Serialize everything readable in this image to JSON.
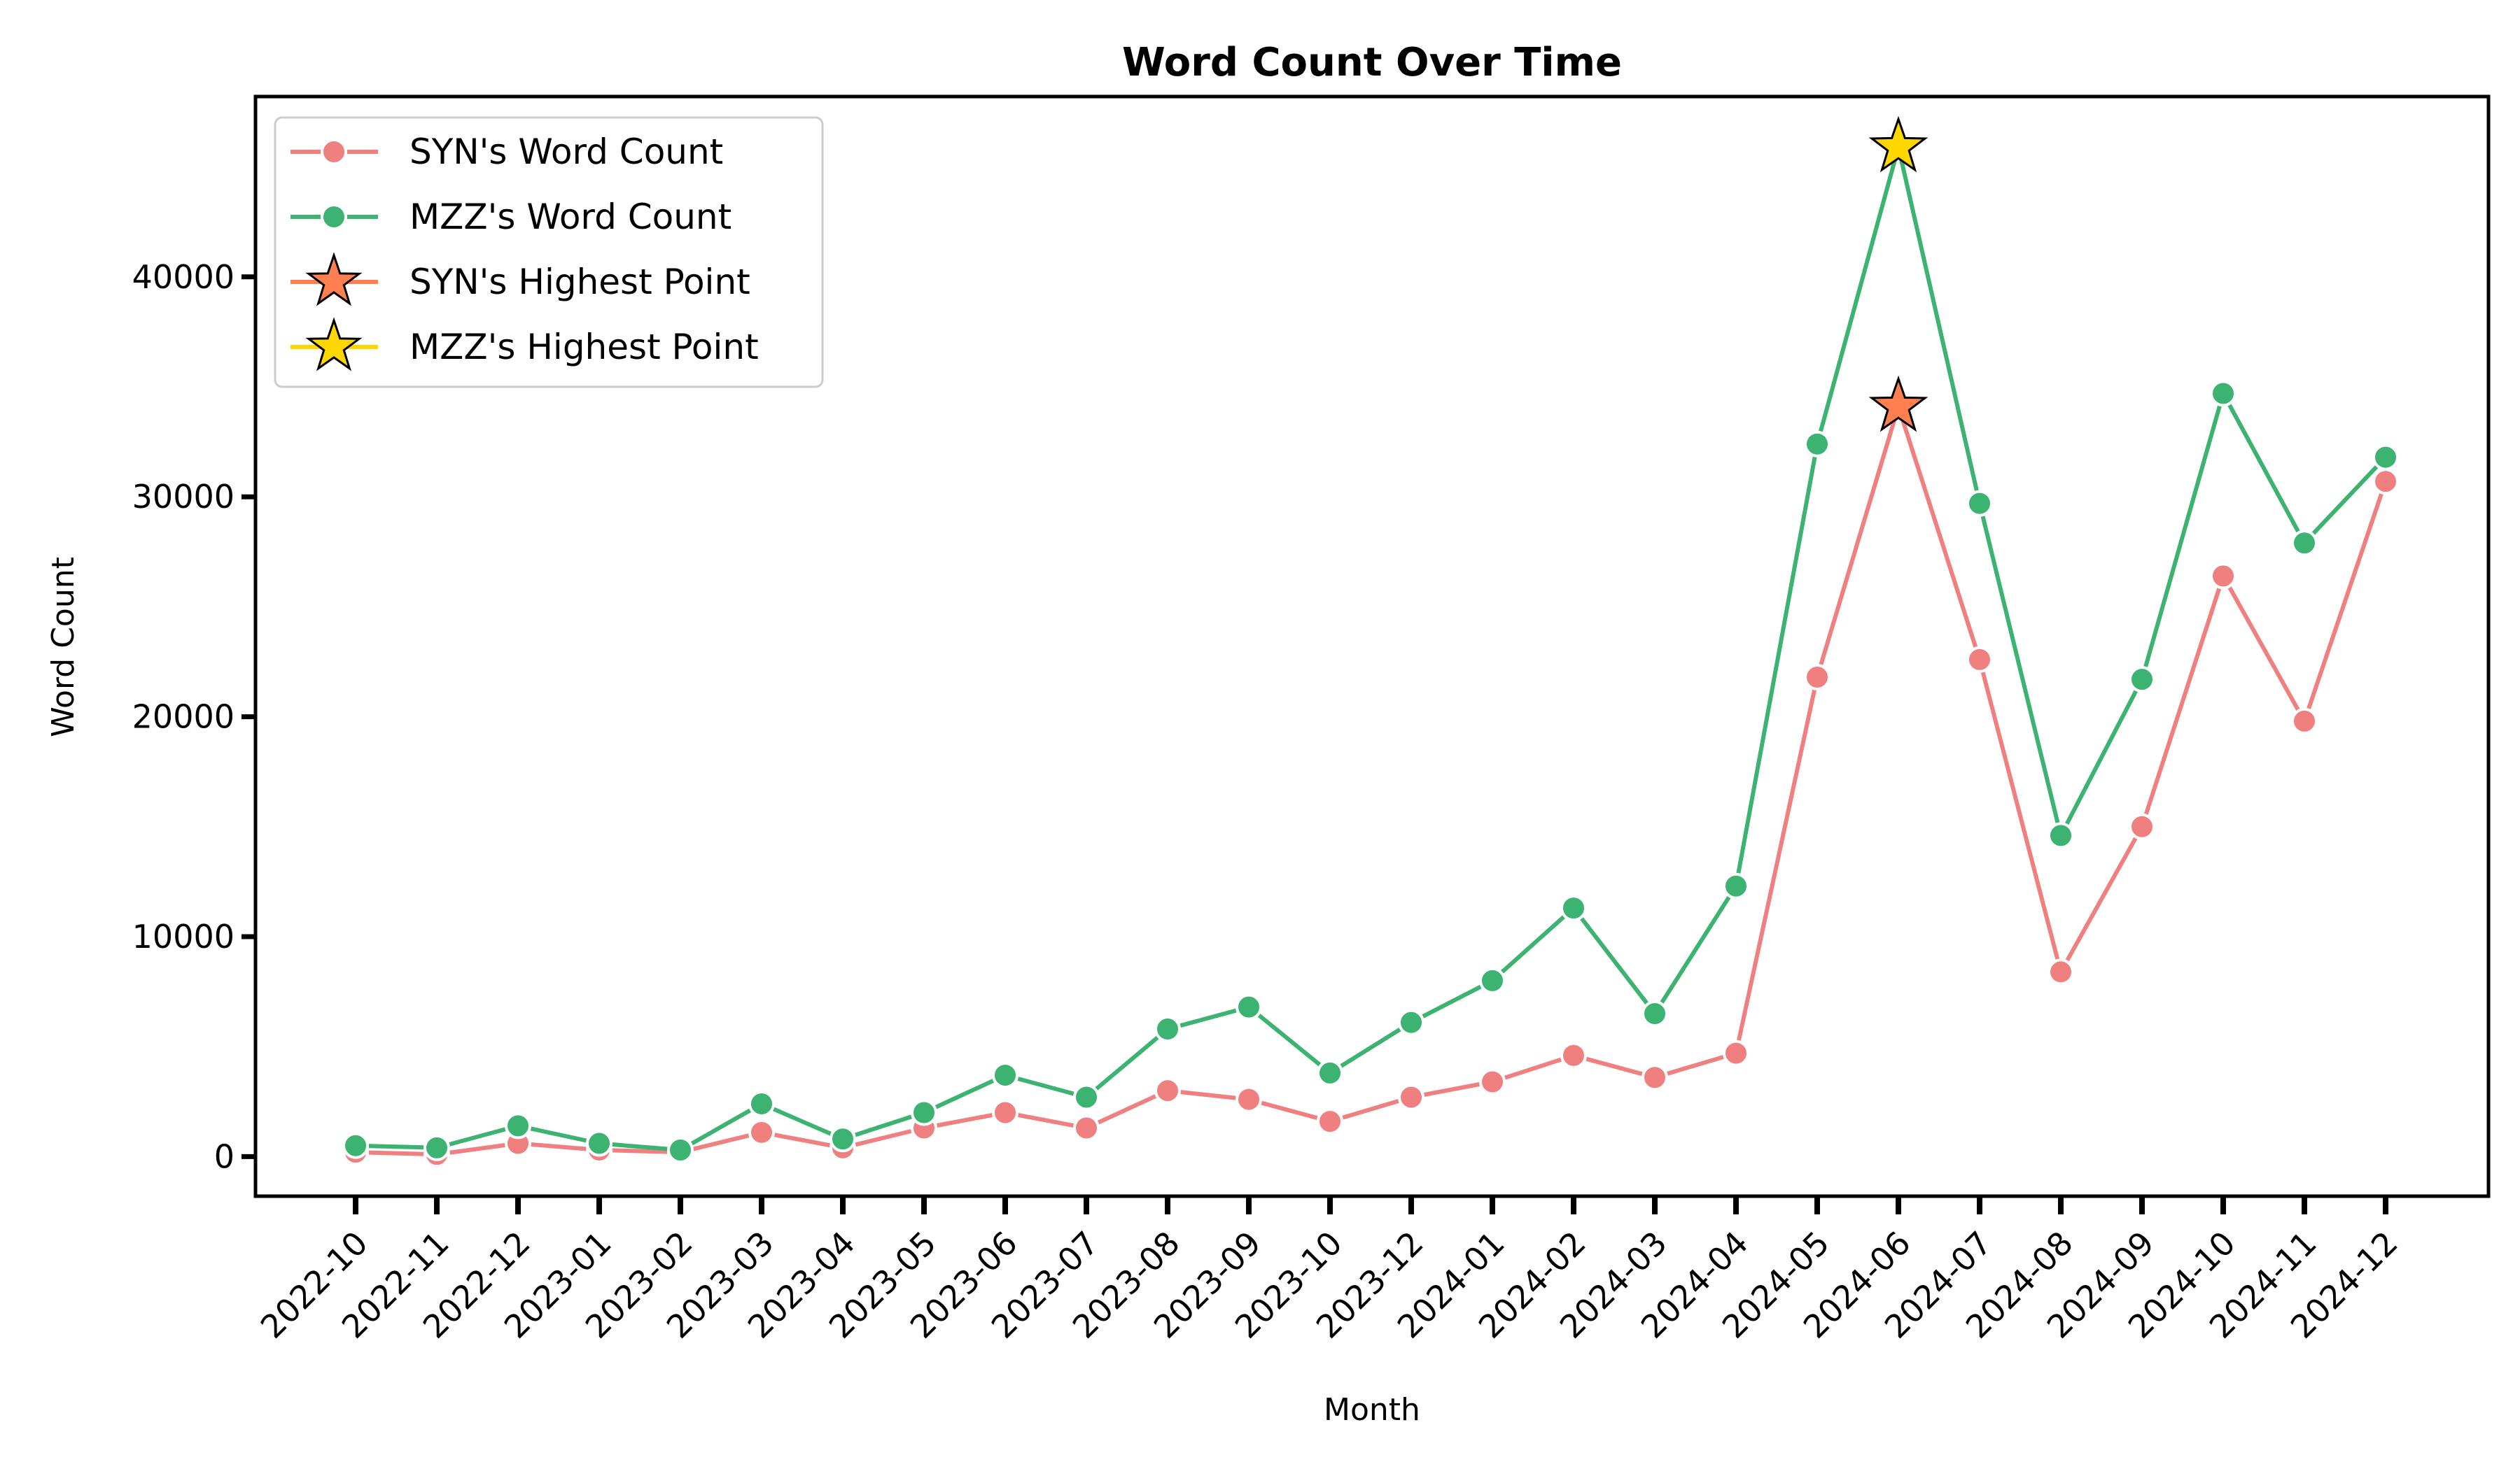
{
  "chart_data": {
    "type": "line",
    "title": "Word Count Over Time",
    "xlabel": "Month",
    "ylabel": "Word Count",
    "ylim": [
      -1800,
      48200
    ],
    "yticks": [
      0,
      10000,
      20000,
      30000,
      40000
    ],
    "grid": false,
    "legend_position": "top-left",
    "x": [
      "2022-10",
      "2022-11",
      "2022-12",
      "2023-01",
      "2023-02",
      "2023-03",
      "2023-04",
      "2023-05",
      "2023-06",
      "2023-07",
      "2023-08",
      "2023-09",
      "2023-10",
      "2023-12",
      "2024-01",
      "2024-02",
      "2024-03",
      "2024-04",
      "2024-05",
      "2024-06",
      "2024-07",
      "2024-08",
      "2024-09",
      "2024-10",
      "2024-11",
      "2024-12"
    ],
    "series": [
      {
        "name": "SYN's Word Count",
        "color": "#f08080",
        "values": [
          200,
          100,
          600,
          300,
          200,
          1100,
          400,
          1300,
          2000,
          1300,
          3000,
          2600,
          1600,
          2700,
          3400,
          4600,
          3600,
          4700,
          21800,
          34100,
          22600,
          8400,
          15000,
          26400,
          19800,
          30700
        ]
      },
      {
        "name": "MZZ's Word Count",
        "color": "#3cb371",
        "values": [
          500,
          400,
          1400,
          600,
          300,
          2400,
          800,
          2000,
          3700,
          2700,
          5800,
          6800,
          3800,
          6100,
          8000,
          11300,
          6500,
          12300,
          32400,
          45900,
          29700,
          14600,
          21700,
          34700,
          27900,
          31800
        ]
      }
    ],
    "highlights": [
      {
        "name": "SYN's Highest Point",
        "x": "2024-06",
        "y": 34100,
        "color": "#ff7f50",
        "marker": "star"
      },
      {
        "name": "MZZ's Highest Point",
        "x": "2024-06",
        "y": 45900,
        "color": "#ffd700",
        "marker": "star"
      }
    ]
  }
}
